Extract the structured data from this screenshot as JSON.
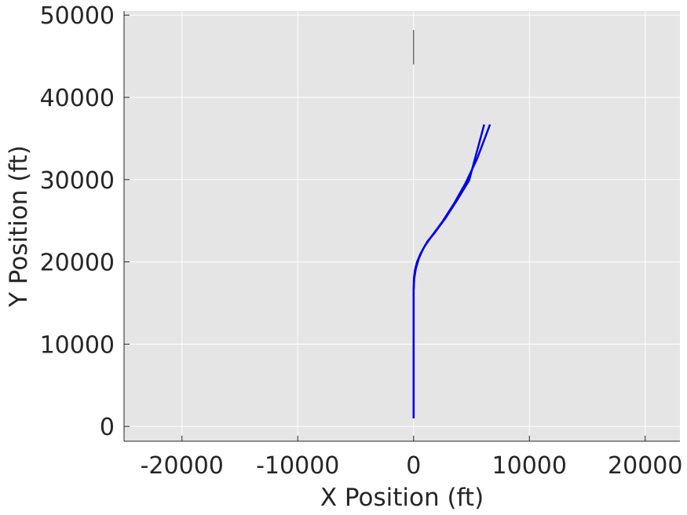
{
  "chart_data": {
    "type": "line",
    "title": "",
    "xlabel": "X Position (ft)",
    "ylabel": "Y Position (ft)",
    "xlim": [
      -25000,
      23000
    ],
    "ylim": [
      -1800,
      50500
    ],
    "grid": true,
    "background_color": "#e5e5e5",
    "grid_color": "#ffffff",
    "x_ticks": [
      -20000,
      -10000,
      0,
      10000,
      20000
    ],
    "x_tick_labels": [
      "-20000",
      "-10000",
      "0",
      "10000",
      "20000"
    ],
    "y_ticks": [
      0,
      10000,
      20000,
      30000,
      40000,
      50000
    ],
    "y_tick_labels": [
      "0",
      "10000",
      "20000",
      "30000",
      "40000",
      "50000"
    ],
    "series": [
      {
        "color": "#0000e6",
        "width": 2.5,
        "x": [
          0,
          0,
          30,
          120,
          300,
          600,
          1000,
          1500,
          2500,
          3500,
          4500,
          5500,
          6600
        ],
        "y": [
          1000,
          16500,
          18000,
          19000,
          20000,
          21000,
          22000,
          23000,
          24900,
          27100,
          29600,
          32600,
          36700
        ]
      },
      {
        "color": "#0000e6",
        "width": 2.5,
        "x": [
          0,
          0,
          60,
          200,
          450,
          800,
          1200,
          1800,
          2800,
          3800,
          4800,
          6100
        ],
        "y": [
          1000,
          16500,
          18000,
          19200,
          20400,
          21500,
          22500,
          23500,
          25400,
          27600,
          29900,
          36700
        ]
      },
      {
        "color": "#333333",
        "width": 1,
        "x": [
          0,
          0
        ],
        "y": [
          44000,
          48200
        ]
      }
    ]
  }
}
